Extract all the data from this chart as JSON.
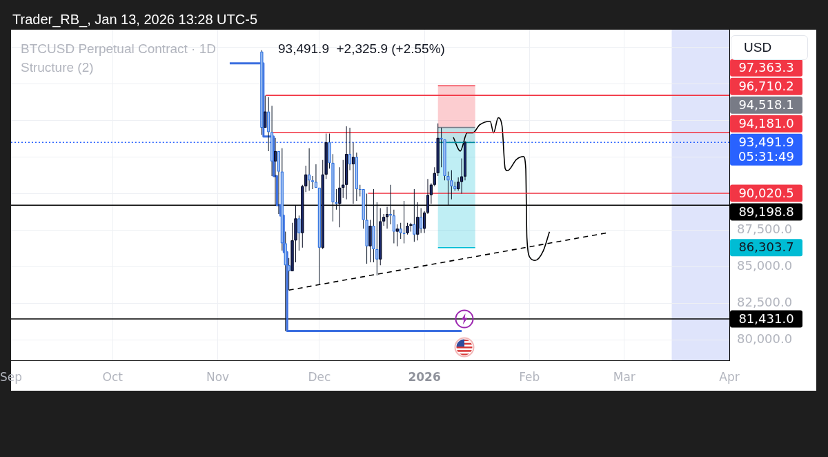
{
  "chart_data": {
    "type": "candlestick",
    "title": "BTCUSD Perpetual Contract · 1D",
    "subtitle": "93,491.9  +2,325.9 (+2.55%)",
    "ylabel": "USD",
    "annotations": [
      "Trader_RB_, Jan 13, 2026 13:28 UTC-5",
      "Structure (2)",
      {
        "text": "97,363.3",
        "x": "2026-04-01",
        "y": 97363.3
      },
      {
        "text": "94,518.1",
        "x": "2026-04-01",
        "y": 94518.1
      },
      {
        "text": "86,303.7",
        "x": "2026-04-01",
        "y": 86303.7
      }
    ],
    "x": [
      "2025-11-14",
      "2025-11-15",
      "2025-11-16",
      "2025-11-17",
      "2025-11-18",
      "2025-11-19",
      "2025-11-20",
      "2025-11-21",
      "2025-11-22",
      "2025-11-23",
      "2025-11-24",
      "2025-11-25",
      "2025-11-26",
      "2025-11-27",
      "2025-11-28",
      "2025-11-29",
      "2025-11-30",
      "2025-12-01",
      "2025-12-02",
      "2025-12-03",
      "2025-12-04",
      "2025-12-05",
      "2025-12-06",
      "2025-12-07",
      "2025-12-08",
      "2025-12-09",
      "2025-12-10",
      "2025-12-11",
      "2025-12-12",
      "2025-12-13",
      "2025-12-14",
      "2025-12-15",
      "2025-12-16",
      "2025-12-17",
      "2025-12-18",
      "2025-12-19",
      "2025-12-20",
      "2025-12-21",
      "2025-12-22",
      "2025-12-23",
      "2025-12-24",
      "2025-12-25",
      "2025-12-26",
      "2025-12-27",
      "2025-12-28",
      "2025-12-29",
      "2025-12-30",
      "2025-12-31",
      "2026-01-01",
      "2026-01-02",
      "2026-01-03",
      "2026-01-04",
      "2026-01-05",
      "2026-01-06",
      "2026-01-07",
      "2026-01-08",
      "2026-01-09",
      "2026-01-10",
      "2026-01-11",
      "2026-01-12",
      "2026-01-13"
    ],
    "ohlc": [
      [
        99700,
        99800,
        94000,
        94500
      ],
      [
        94500,
        96700,
        94500,
        95600
      ],
      [
        95600,
        96600,
        92900,
        94200
      ],
      [
        94200,
        96000,
        91200,
        92200
      ],
      [
        92200,
        93800,
        89200,
        92900
      ],
      [
        92900,
        92900,
        88600,
        91500
      ],
      [
        91500,
        93100,
        86100,
        86600
      ],
      [
        86600,
        87400,
        80600,
        85100
      ],
      [
        85100,
        85600,
        83400,
        84700
      ],
      [
        84700,
        88000,
        84700,
        86800
      ],
      [
        86800,
        89200,
        85300,
        88300
      ],
      [
        88300,
        88500,
        86100,
        87300
      ],
      [
        87300,
        90600,
        86300,
        90500
      ],
      [
        90500,
        91900,
        90100,
        91300
      ],
      [
        91300,
        93100,
        90200,
        90900
      ],
      [
        90900,
        91200,
        90300,
        90800
      ],
      [
        90800,
        92000,
        90400,
        90400
      ],
      [
        90400,
        90400,
        83800,
        86300
      ],
      [
        86300,
        92300,
        86200,
        91300
      ],
      [
        91300,
        94100,
        91000,
        93500
      ],
      [
        93500,
        94100,
        91700,
        92100
      ],
      [
        92100,
        92700,
        88100,
        89400
      ],
      [
        89400,
        90300,
        88900,
        89300
      ],
      [
        89300,
        91800,
        87700,
        90400
      ],
      [
        90400,
        92300,
        89700,
        90600
      ],
      [
        90600,
        94600,
        89600,
        92700
      ],
      [
        92700,
        94500,
        91600,
        92000
      ],
      [
        92000,
        93500,
        89300,
        92500
      ],
      [
        92500,
        92800,
        89500,
        90300
      ],
      [
        90300,
        90600,
        89800,
        90300
      ],
      [
        90300,
        90300,
        87600,
        88200
      ],
      [
        88200,
        90000,
        85200,
        86400
      ],
      [
        86400,
        88200,
        85300,
        87800
      ],
      [
        87800,
        90300,
        85300,
        86200
      ],
      [
        86200,
        89400,
        84400,
        85500
      ],
      [
        85500,
        89000,
        85100,
        88100
      ],
      [
        88100,
        88600,
        87800,
        88400
      ],
      [
        88400,
        89100,
        87600,
        88600
      ],
      [
        88600,
        90600,
        87900,
        88500
      ],
      [
        88500,
        88900,
        86600,
        87400
      ],
      [
        87400,
        87900,
        86400,
        87600
      ],
      [
        87600,
        88000,
        86900,
        87300
      ],
      [
        87300,
        89500,
        86600,
        87300
      ],
      [
        87300,
        88000,
        87200,
        87800
      ],
      [
        87800,
        88000,
        87400,
        87900
      ],
      [
        87900,
        90300,
        86700,
        87200
      ],
      [
        87200,
        89400,
        86800,
        88400
      ],
      [
        88400,
        89000,
        87300,
        87600
      ],
      [
        87600,
        88800,
        87300,
        88700
      ],
      [
        88700,
        91000,
        88600,
        89900
      ],
      [
        89900,
        90700,
        89300,
        90600
      ],
      [
        90600,
        91800,
        90500,
        91400
      ],
      [
        91400,
        94800,
        91200,
        93800
      ],
      [
        93800,
        94500,
        91800,
        93700
      ],
      [
        93700,
        93700,
        90900,
        91200
      ],
      [
        91200,
        91500,
        89200,
        90900
      ],
      [
        90900,
        91600,
        89600,
        90500
      ],
      [
        90500,
        90800,
        90200,
        90300
      ],
      [
        90300,
        91100,
        90200,
        90800
      ],
      [
        90800,
        92400,
        90000,
        91166
      ],
      [
        91166,
        93600,
        90900,
        93491.9
      ]
    ],
    "colors": [
      "#a8c4f2",
      "#1c2a6e",
      "#a8c4f2",
      "#a8c4f2",
      "#1c2a6e",
      "#a8c4f2",
      "#a8c4f2",
      "#a8c4f2",
      "#a8c4f2",
      "#1c2a6e",
      "#1c2a6e",
      "#a8c4f2",
      "#1c2a6e",
      "#1c2a6e",
      "#a8c4f2",
      "#a8c4f2",
      "#a8c4f2",
      "#a8c4f2",
      "#1c2a6e",
      "#1c2a6e",
      "#a8c4f2",
      "#a8c4f2",
      "#a8c4f2",
      "#1c2a6e",
      "#1c2a6e",
      "#1c2a6e",
      "#a8c4f2",
      "#1c2a6e",
      "#a8c4f2",
      "#a8c4f2",
      "#a8c4f2",
      "#a8c4f2",
      "#1c2a6e",
      "#a8c4f2",
      "#a8c4f2",
      "#1c2a6e",
      "#1c2a6e",
      "#1c2a6e",
      "#a8c4f2",
      "#a8c4f2",
      "#1c2a6e",
      "#a8c4f2",
      "#a8c4f2",
      "#1c2a6e",
      "#1c2a6e",
      "#a8c4f2",
      "#1c2a6e",
      "#a8c4f2",
      "#1c2a6e",
      "#1c2a6e",
      "#1c2a6e",
      "#1c2a6e",
      "#1c2a6e",
      "#a8c4f2",
      "#a8c4f2",
      "#a8c4f2",
      "#a8c4f2",
      "#a8c4f2",
      "#1c2a6e",
      "#1c2a6e",
      "#1c2a6e"
    ],
    "series": [
      {
        "type": "step",
        "color": "#3b6fe0",
        "x": [
          "2025-11-04T13:00",
          "2025-11-14T12:00",
          "2025-11-17T12:00",
          "2025-11-18T12:00",
          "2025-11-19T12:00",
          "2025-11-20T12:00",
          "2025-11-21T12:00",
          "2026-01-12"
        ],
        "values": [
          98900,
          93900,
          91200,
          89200,
          88500,
          86000,
          80600,
          80600
        ]
      },
      {
        "type": "line",
        "color": "#f23645",
        "x": [
          "2025-11-15T04:00",
          "2026-04-01"
        ],
        "values": [
          96710.2,
          96710.2
        ],
        "value_labels": [
          null,
          "96,710.2"
        ]
      },
      {
        "type": "line",
        "color": "#f23645",
        "x": [
          "2025-11-17T05:00",
          "2026-04-01"
        ],
        "values": [
          94181.0,
          94181.0
        ],
        "value_labels": [
          null,
          "94,181.0"
        ]
      },
      {
        "type": "line",
        "color": "#f23645",
        "x": [
          "2025-12-15T09:00",
          "2026-04-01"
        ],
        "values": [
          90020.5,
          90020.5
        ],
        "value_labels": [
          null,
          "90,020.5"
        ]
      },
      {
        "type": "line",
        "color": "#f23645",
        "x": [
          "2026-01-05",
          "2026-01-16"
        ],
        "values": [
          97363.3,
          97363.3
        ],
        "lower": [
          94518.1,
          94518.1
        ],
        "upper": [
          97363.3,
          97363.3
        ]
      },
      {
        "type": "line",
        "color": "#00bcd4",
        "x": [
          "2026-01-05",
          "2026-01-16"
        ],
        "values": [
          86303.7,
          86303.7
        ],
        "lower": [
          86303.7,
          86303.7
        ],
        "upper": [
          93491.9,
          93491.9
        ]
      },
      {
        "type": "line",
        "color": "#008c9e",
        "x": [
          "2026-01-05",
          "2026-01-16"
        ],
        "values": [
          93491.9,
          93491.9
        ],
        "lower": [
          93491.9,
          93491.9
        ],
        "upper": [
          94518.1,
          94518.1
        ]
      },
      {
        "type": "line",
        "color": "#787b86",
        "x": [
          "2026-01-05",
          "2026-01-16"
        ],
        "values": [
          94518.1,
          94518.1
        ]
      },
      {
        "type": "line",
        "color": "#000000",
        "line_style": "dashed",
        "x": [
          "2025-11-22",
          "2026-02-23T13:00"
        ],
        "values": [
          83400,
          87300
        ]
      },
      {
        "type": "line",
        "color": "#000000",
        "x": [
          "2026-01-09T13:00",
          "2026-01-11T14:00",
          "2026-01-13T15:00",
          "2026-01-15T07:00",
          "2026-01-17T08:00",
          "2026-01-20T10:00",
          "2026-01-21T10:00",
          "2026-01-22T19:00",
          "2026-01-23T22:00",
          "2026-01-24T20:00",
          "2026-01-25T12:00",
          "2026-01-28T05:00",
          "2026-01-30T06:00",
          "2026-01-30T22:00",
          "2026-01-31T06:00",
          "2026-02-01T07:00",
          "2026-02-02T16:00",
          "2026-02-05T01:00",
          "2026-02-06T22:00"
        ],
        "values": [
          93840,
          92900,
          94150,
          94150,
          94700,
          94940,
          94150,
          95180,
          94620,
          91720,
          91560,
          92340,
          92530,
          91720,
          87000,
          85590,
          85430,
          86060,
          87390
        ]
      }
    ],
    "ref_lines": [
      {
        "axis": "y",
        "value": 93491.9,
        "label": "93,491.9\n05:31:49",
        "color": "#2962ff",
        "line_style": "dotted"
      },
      {
        "axis": "y",
        "value": 89198.8,
        "label": "89,198.8",
        "color": "#000000"
      },
      {
        "axis": "y",
        "value": 81431.0,
        "label": "81,431.0",
        "color": "#000000"
      }
    ],
    "bands": [
      {
        "axis": "x",
        "from": "2026-03-15",
        "to": "2026-04-01",
        "color": "#dfe4fb"
      }
    ],
    "xlim": [
      "2025-09-01",
      "2026-04-01"
    ],
    "xticks": [
      {
        "value": "2025-09-01",
        "label": "Sep"
      },
      {
        "value": "2025-10-01",
        "label": "Oct"
      },
      {
        "value": "2025-11-01",
        "label": "Nov"
      },
      {
        "value": "2025-12-01",
        "label": "Dec"
      },
      {
        "value": "2026-01-01",
        "label": "2026"
      },
      {
        "value": "2026-02-01",
        "label": "Feb"
      },
      {
        "value": "2026-03-01",
        "label": "Mar"
      },
      {
        "value": "2026-04-01",
        "label": "Apr"
      }
    ],
    "ylim": [
      78600,
      101200
    ],
    "yticks": [
      {
        "value": 80000,
        "label": "80,000.0"
      },
      {
        "value": 82500,
        "label": "82,500.0"
      },
      {
        "value": 85000,
        "label": "85,000.0"
      },
      {
        "value": 87500,
        "label": "87,500.0"
      },
      {
        "value": 90000,
        "label": null
      },
      {
        "value": 92500,
        "label": null
      },
      {
        "value": 95000,
        "label": null
      },
      {
        "value": 97500,
        "label": null
      },
      {
        "value": 100000,
        "label": null
      }
    ],
    "grid": true
  }
}
